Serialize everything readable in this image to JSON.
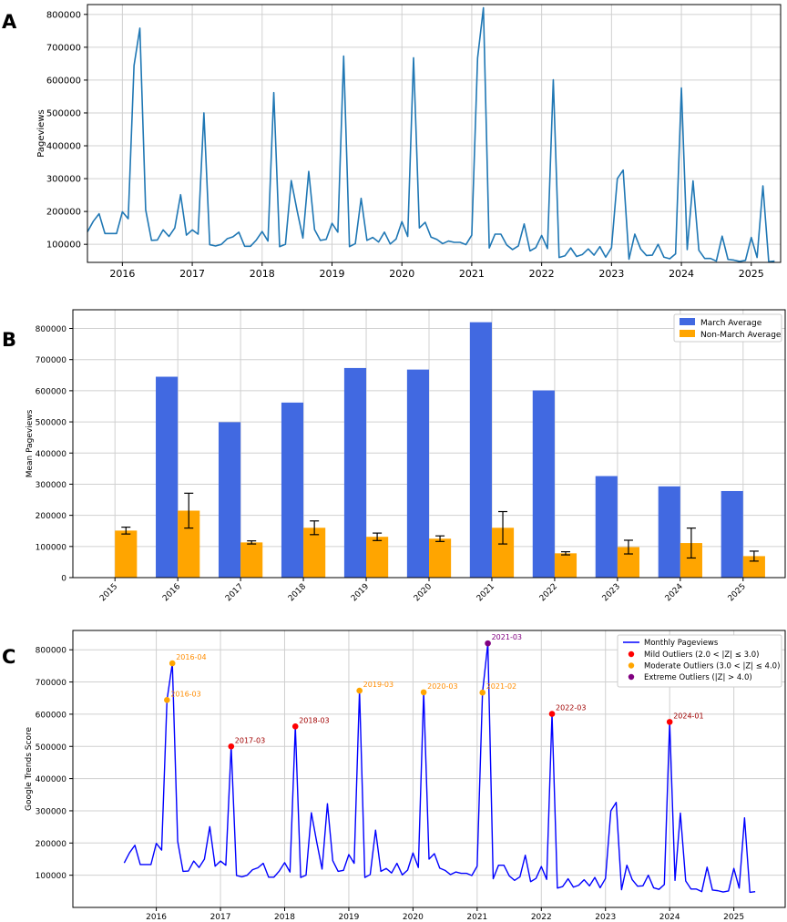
{
  "chart_data": [
    {
      "panel_label": "A",
      "type": "line",
      "ylabel": "Pageviews",
      "series_color": "#1f77b4",
      "x_range": [
        2015.5,
        2025.42
      ],
      "ylim": [
        45000,
        830000
      ],
      "yticks": [
        100000,
        200000,
        300000,
        400000,
        500000,
        600000,
        700000,
        800000
      ],
      "xticks": [
        "2016",
        "2017",
        "2018",
        "2019",
        "2020",
        "2021",
        "2022",
        "2023",
        "2024",
        "2025"
      ],
      "start": [
        2015,
        7
      ],
      "values": [
        138000,
        170000,
        193000,
        133000,
        133000,
        133000,
        199000,
        178000,
        644000,
        758000,
        205000,
        112000,
        113000,
        144000,
        124000,
        150000,
        251000,
        128000,
        144000,
        131000,
        500000,
        99000,
        95000,
        100000,
        117000,
        123000,
        137000,
        94000,
        94000,
        113000,
        139000,
        110000,
        562000,
        93000,
        100000,
        294000,
        203000,
        119000,
        322000,
        145000,
        112000,
        115000,
        164000,
        137000,
        673000,
        93000,
        102000,
        240000,
        112000,
        121000,
        107000,
        137000,
        101000,
        116000,
        169000,
        124000,
        668000,
        150000,
        167000,
        122000,
        115000,
        102000,
        110000,
        106000,
        106000,
        99000,
        128000,
        667000,
        820000,
        89000,
        131000,
        131000,
        98000,
        84000,
        95000,
        162000,
        80000,
        90000,
        127000,
        87000,
        601000,
        60000,
        65000,
        89000,
        63000,
        69000,
        86000,
        67000,
        93000,
        61000,
        90000,
        300000,
        326000,
        55000,
        131000,
        86000,
        66000,
        67000,
        100000,
        61000,
        56000,
        71000,
        576000,
        84000,
        293000,
        82000,
        57000,
        57000,
        49000,
        125000,
        54000,
        52000,
        48000,
        51000,
        121000,
        60000,
        278000,
        47000,
        49000
      ]
    },
    {
      "panel_label": "B",
      "type": "bar",
      "ylabel": "Mean Pageviews",
      "categories": [
        "2015",
        "2016",
        "2017",
        "2018",
        "2019",
        "2020",
        "2021",
        "2022",
        "2023",
        "2024",
        "2025"
      ],
      "ylim": [
        0,
        860000
      ],
      "yticks": [
        "0",
        "100000",
        "200000",
        "300000",
        "400000",
        "500000",
        "600000",
        "700000",
        "800000"
      ],
      "series": [
        {
          "name": "March Average",
          "color": "#4169e1",
          "values": [
            null,
            645000,
            499000,
            562000,
            673000,
            668000,
            820000,
            601000,
            326000,
            293000,
            278000
          ]
        },
        {
          "name": "Non-March Average",
          "color": "#ffa500",
          "values": [
            151000,
            215000,
            113000,
            160000,
            131000,
            125000,
            160000,
            78000,
            98000,
            111000,
            69000
          ],
          "errors": [
            11000,
            56000,
            5000,
            22000,
            12000,
            9000,
            52000,
            5000,
            22000,
            48000,
            16000
          ]
        }
      ],
      "legend": "top-right"
    },
    {
      "panel_label": "C",
      "type": "line",
      "ylabel": "Google Trends Score",
      "series_name": "Monthly Pageviews",
      "series_color": "#0000ff",
      "x_range": [
        2014.7,
        2025.8
      ],
      "ylim": [
        0,
        860000
      ],
      "yticks": [
        "100000",
        "200000",
        "300000",
        "400000",
        "500000",
        "600000",
        "700000",
        "800000"
      ],
      "xticks": [
        "2016",
        "2017",
        "2018",
        "2019",
        "2020",
        "2021",
        "2022",
        "2023",
        "2024",
        "2025"
      ],
      "start": [
        2015,
        7
      ],
      "outliers": [
        {
          "label": "2016-03",
          "value": 644000,
          "level": "moderate"
        },
        {
          "label": "2016-04",
          "value": 758000,
          "level": "moderate"
        },
        {
          "label": "2017-03",
          "value": 500000,
          "level": "mild"
        },
        {
          "label": "2018-03",
          "value": 562000,
          "level": "mild"
        },
        {
          "label": "2019-03",
          "value": 673000,
          "level": "moderate"
        },
        {
          "label": "2020-03",
          "value": 668000,
          "level": "moderate"
        },
        {
          "label": "2021-02",
          "value": 667000,
          "level": "moderate"
        },
        {
          "label": "2021-03",
          "value": 820000,
          "level": "extreme"
        },
        {
          "label": "2022-03",
          "value": 601000,
          "level": "mild"
        },
        {
          "label": "2024-01",
          "value": 576000,
          "level": "mild"
        }
      ],
      "outlier_legend": [
        {
          "level": "mild",
          "label": "Mild Outliers (2.0 < |Z| ≤ 3.0)",
          "color": "#ff0000",
          "text_color": "#a00000"
        },
        {
          "level": "moderate",
          "label": "Moderate Outliers (3.0 < |Z| ≤ 4.0)",
          "color": "#ffa500",
          "text_color": "#ff8c00"
        },
        {
          "level": "extreme",
          "label": "Extreme Outliers (|Z| > 4.0)",
          "color": "#800080",
          "text_color": "#800080"
        }
      ],
      "legend": "top-right"
    }
  ]
}
